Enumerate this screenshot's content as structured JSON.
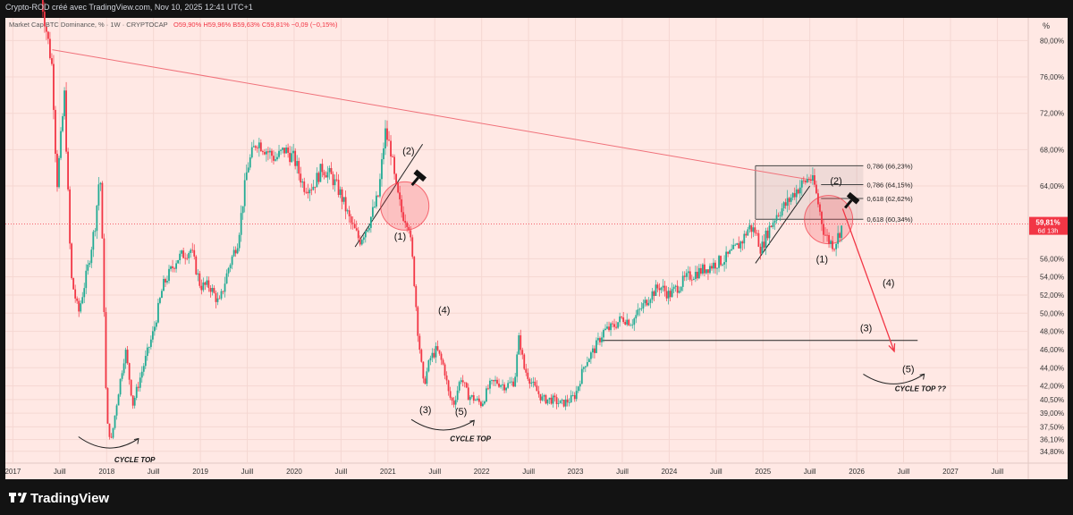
{
  "header": {
    "publisher": "Crypto-ROD créé avec TradingView.com, Nov 10, 2025 12:41 UTC+1",
    "symbol": "Market Cap BTC Dominance, % · 1W · CRYPTOCAP",
    "ohlc": "O59,90% H59,96% B59,63% C59,81% −0,09 (−0,15%)"
  },
  "brand": {
    "name": "TradingView"
  },
  "colors": {
    "background": "#ffe8e4",
    "frame": "#131313",
    "up": "#22ab94",
    "down": "#f23645",
    "trendline": "#f0717a",
    "price_badge": "#f23645"
  },
  "chart_data": {
    "type": "candlestick",
    "symbol": "BTC.D",
    "timeframe": "1W",
    "y_unit": "%",
    "ylim": [
      33.5,
      82.5
    ],
    "y_ticks": [
      {
        "v": 80.0,
        "label": "80,00%"
      },
      {
        "v": 76.0,
        "label": "76,00%"
      },
      {
        "v": 72.0,
        "label": "72,00%"
      },
      {
        "v": 68.0,
        "label": "68,00%"
      },
      {
        "v": 64.0,
        "label": "64,00%"
      },
      {
        "v": 56.0,
        "label": "56,00%"
      },
      {
        "v": 54.0,
        "label": "54,00%"
      },
      {
        "v": 52.0,
        "label": "52,00%"
      },
      {
        "v": 50.0,
        "label": "50,00%"
      },
      {
        "v": 48.0,
        "label": "48,00%"
      },
      {
        "v": 46.0,
        "label": "46,00%"
      },
      {
        "v": 44.0,
        "label": "44,00%"
      },
      {
        "v": 42.0,
        "label": "42,00%"
      },
      {
        "v": 40.5,
        "label": "40,50%"
      },
      {
        "v": 39.0,
        "label": "39,00%"
      },
      {
        "v": 37.5,
        "label": "37,50%"
      },
      {
        "v": 36.1,
        "label": "36,10%"
      },
      {
        "v": 34.8,
        "label": "34,80%"
      }
    ],
    "x_ticks": [
      {
        "t": 2017.0,
        "label": "2017"
      },
      {
        "t": 2017.5,
        "label": "Juill"
      },
      {
        "t": 2018.0,
        "label": "2018"
      },
      {
        "t": 2018.5,
        "label": "Juill"
      },
      {
        "t": 2019.0,
        "label": "2019"
      },
      {
        "t": 2019.5,
        "label": "Juill"
      },
      {
        "t": 2020.0,
        "label": "2020"
      },
      {
        "t": 2020.5,
        "label": "Juill"
      },
      {
        "t": 2021.0,
        "label": "2021"
      },
      {
        "t": 2021.5,
        "label": "Juill"
      },
      {
        "t": 2022.0,
        "label": "2022"
      },
      {
        "t": 2022.5,
        "label": "Juill"
      },
      {
        "t": 2023.0,
        "label": "2023"
      },
      {
        "t": 2023.5,
        "label": "Juill"
      },
      {
        "t": 2024.0,
        "label": "2024"
      },
      {
        "t": 2024.5,
        "label": "Juill"
      },
      {
        "t": 2025.0,
        "label": "2025"
      },
      {
        "t": 2025.5,
        "label": "Juill"
      },
      {
        "t": 2026.0,
        "label": "2026"
      },
      {
        "t": 2026.5,
        "label": "Juill"
      },
      {
        "t": 2027.0,
        "label": "2027"
      },
      {
        "t": 2027.5,
        "label": "Juill"
      }
    ],
    "price_path": [
      [
        2017.3,
        85.0
      ],
      [
        2017.42,
        77.0
      ],
      [
        2017.47,
        64.0
      ],
      [
        2017.55,
        74.0
      ],
      [
        2017.62,
        54.0
      ],
      [
        2017.7,
        50.0
      ],
      [
        2017.8,
        55.0
      ],
      [
        2017.88,
        60.0
      ],
      [
        2017.93,
        66.0
      ],
      [
        2017.97,
        52.0
      ],
      [
        2018.0,
        38.0
      ],
      [
        2018.05,
        36.0
      ],
      [
        2018.12,
        41.0
      ],
      [
        2018.2,
        46.0
      ],
      [
        2018.28,
        40.0
      ],
      [
        2018.36,
        43.0
      ],
      [
        2018.5,
        48.0
      ],
      [
        2018.6,
        53.0
      ],
      [
        2018.75,
        56.0
      ],
      [
        2018.9,
        57.0
      ],
      [
        2019.0,
        53.0
      ],
      [
        2019.1,
        53.0
      ],
      [
        2019.2,
        51.0
      ],
      [
        2019.3,
        55.0
      ],
      [
        2019.4,
        58.0
      ],
      [
        2019.5,
        66.0
      ],
      [
        2019.6,
        69.0
      ],
      [
        2019.7,
        68.0
      ],
      [
        2019.8,
        67.0
      ],
      [
        2019.9,
        68.0
      ],
      [
        2020.0,
        67.0
      ],
      [
        2020.1,
        64.0
      ],
      [
        2020.2,
        64.0
      ],
      [
        2020.3,
        66.0
      ],
      [
        2020.4,
        65.0
      ],
      [
        2020.5,
        63.0
      ],
      [
        2020.6,
        60.0
      ],
      [
        2020.7,
        58.0
      ],
      [
        2020.8,
        60.0
      ],
      [
        2020.9,
        63.0
      ],
      [
        2020.97,
        70.0
      ],
      [
        2021.03,
        68.0
      ],
      [
        2021.08,
        64.0
      ],
      [
        2021.15,
        61.0
      ],
      [
        2021.22,
        60.0
      ],
      [
        2021.27,
        55.0
      ],
      [
        2021.32,
        48.0
      ],
      [
        2021.38,
        42.0
      ],
      [
        2021.45,
        45.0
      ],
      [
        2021.52,
        46.0
      ],
      [
        2021.6,
        44.0
      ],
      [
        2021.65,
        41.0
      ],
      [
        2021.7,
        40.0
      ],
      [
        2021.78,
        43.0
      ],
      [
        2021.85,
        41.0
      ],
      [
        2021.93,
        40.5
      ],
      [
        2022.0,
        40.0
      ],
      [
        2022.08,
        42.0
      ],
      [
        2022.15,
        42.5
      ],
      [
        2022.25,
        42.0
      ],
      [
        2022.35,
        42.5
      ],
      [
        2022.4,
        47.5
      ],
      [
        2022.45,
        44.0
      ],
      [
        2022.55,
        42.0
      ],
      [
        2022.65,
        40.5
      ],
      [
        2022.75,
        40.5
      ],
      [
        2022.85,
        40.0
      ],
      [
        2022.95,
        40.5
      ],
      [
        2023.0,
        41.0
      ],
      [
        2023.1,
        44.5
      ],
      [
        2023.2,
        46.0
      ],
      [
        2023.3,
        48.0
      ],
      [
        2023.4,
        48.5
      ],
      [
        2023.5,
        49.5
      ],
      [
        2023.6,
        49.0
      ],
      [
        2023.7,
        50.5
      ],
      [
        2023.8,
        52.0
      ],
      [
        2023.9,
        53.0
      ],
      [
        2024.0,
        52.0
      ],
      [
        2024.1,
        53.0
      ],
      [
        2024.2,
        54.0
      ],
      [
        2024.3,
        54.5
      ],
      [
        2024.4,
        55.0
      ],
      [
        2024.5,
        55.5
      ],
      [
        2024.6,
        56.0
      ],
      [
        2024.7,
        57.0
      ],
      [
        2024.78,
        58.0
      ],
      [
        2024.85,
        59.5
      ],
      [
        2024.92,
        59.0
      ],
      [
        2024.98,
        57.0
      ],
      [
        2025.05,
        59.0
      ],
      [
        2025.15,
        61.0
      ],
      [
        2025.25,
        62.0
      ],
      [
        2025.35,
        63.5
      ],
      [
        2025.45,
        64.5
      ],
      [
        2025.5,
        65.0
      ],
      [
        2025.55,
        64.0
      ],
      [
        2025.6,
        61.5
      ],
      [
        2025.65,
        59.0
      ],
      [
        2025.7,
        58.0
      ],
      [
        2025.76,
        57.5
      ],
      [
        2025.8,
        58.5
      ],
      [
        2025.85,
        59.81
      ]
    ],
    "current_price": {
      "value": 59.81,
      "label": "59,81%",
      "sublabel": "6d 13h"
    },
    "horizontal_lines": [
      {
        "value": 47.0,
        "t_start": 2023.28,
        "t_end": 2026.65
      }
    ],
    "trendlines": [
      {
        "name": "resistance",
        "from": [
          2017.42,
          79.0
        ],
        "to": [
          2025.55,
          64.6
        ]
      },
      {
        "name": "wedge-2021-low",
        "from": [
          2020.65,
          57.3
        ],
        "to": [
          2021.37,
          68.6
        ]
      },
      {
        "name": "wedge-2025-low",
        "from": [
          2024.92,
          55.5
        ],
        "to": [
          2025.5,
          64.0
        ]
      }
    ],
    "fib_levels": [
      {
        "label": "0,786 (66,23%)",
        "value": 66.23,
        "t_start": 2024.92,
        "t_end": 2026.07
      },
      {
        "label": "0,786 (64,15%)",
        "value": 64.15,
        "t_start": 2025.62,
        "t_end": 2026.07
      },
      {
        "label": "0,618 (62,62%)",
        "value": 62.62,
        "t_start": 2025.62,
        "t_end": 2026.07
      },
      {
        "label": "0,618 (60,34%)",
        "value": 60.34,
        "t_start": 2024.92,
        "t_end": 2026.07
      }
    ],
    "circles": [
      {
        "t": 2021.18,
        "v": 61.8
      },
      {
        "t": 2025.7,
        "v": 60.3
      }
    ],
    "projection_arrow": {
      "from": [
        2025.85,
        61.5
      ],
      "to": [
        2026.4,
        45.8
      ]
    },
    "wave_labels": [
      {
        "text": "(2)",
        "t": 2021.22,
        "v": 67.5
      },
      {
        "text": "(1)",
        "t": 2021.13,
        "v": 58.1
      },
      {
        "text": "(4)",
        "t": 2021.6,
        "v": 50.0
      },
      {
        "text": "(3)",
        "t": 2021.4,
        "v": 39.0
      },
      {
        "text": "(5)",
        "t": 2021.78,
        "v": 38.8
      },
      {
        "text": "(2)",
        "t": 2025.78,
        "v": 64.2
      },
      {
        "text": "(1)",
        "t": 2025.63,
        "v": 55.6
      },
      {
        "text": "(4)",
        "t": 2026.34,
        "v": 53.0
      },
      {
        "text": "(3)",
        "t": 2026.1,
        "v": 48.0
      },
      {
        "text": "(5)",
        "t": 2026.55,
        "v": 43.5
      }
    ],
    "annotations": [
      {
        "text": "CYCLE TOP",
        "t": 2018.3,
        "v": 33.6
      },
      {
        "text": "CYCLE TOP",
        "t": 2021.88,
        "v": 35.9
      },
      {
        "text": "CYCLE TOP ??",
        "t": 2026.68,
        "v": 41.4
      }
    ],
    "cycle_arcs": [
      {
        "from": [
          2017.7,
          36.4
        ],
        "to": [
          2018.34,
          36.2
        ]
      },
      {
        "from": [
          2021.25,
          38.3
        ],
        "to": [
          2021.92,
          38.2
        ]
      },
      {
        "from": [
          2026.07,
          43.3
        ],
        "to": [
          2026.72,
          43.3
        ]
      }
    ]
  }
}
